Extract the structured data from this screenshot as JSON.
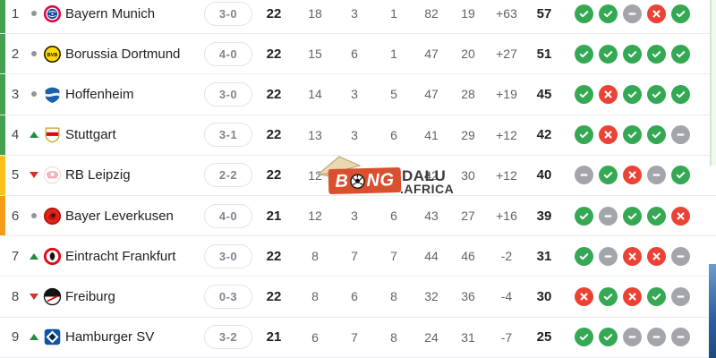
{
  "watermark": {
    "brand_left": "B",
    "brand_right": "NG",
    "brand_mid_icon": "soccer-ball-icon",
    "dalu": "DAŁU",
    "africa": ".AFRICA",
    "box_color": "#d8502e"
  },
  "colors": {
    "zone_green": "#42a04e",
    "zone_yellow": "#fcc21b",
    "zone_orange": "#f59b1c",
    "form_win": "#34a853",
    "form_loss": "#ea4335",
    "form_draw": "#a2a6ab",
    "move_up": "#1e8e3e",
    "move_down": "#d93025"
  },
  "table": {
    "rows": [
      {
        "pos": "1",
        "movement": "same",
        "logo": "bayern-munich-crest",
        "team": "Bayern Munich",
        "last_score": "3-0",
        "mp": "22",
        "w": "18",
        "d": "3",
        "l": "1",
        "gf": "82",
        "ga": "19",
        "gd": "+63",
        "pts": "57",
        "zone": "green",
        "form": [
          "win",
          "win",
          "draw",
          "loss",
          "win"
        ]
      },
      {
        "pos": "2",
        "movement": "same",
        "logo": "borussia-dortmund-crest",
        "team": "Borussia Dortmund",
        "last_score": "4-0",
        "mp": "22",
        "w": "15",
        "d": "6",
        "l": "1",
        "gf": "47",
        "ga": "20",
        "gd": "+27",
        "pts": "51",
        "zone": "green",
        "form": [
          "win",
          "win",
          "win",
          "win",
          "win"
        ]
      },
      {
        "pos": "3",
        "movement": "same",
        "logo": "hoffenheim-crest",
        "team": "Hoffenheim",
        "last_score": "3-0",
        "mp": "22",
        "w": "14",
        "d": "3",
        "l": "5",
        "gf": "47",
        "ga": "28",
        "gd": "+19",
        "pts": "45",
        "zone": "green",
        "form": [
          "win",
          "loss",
          "win",
          "win",
          "win"
        ]
      },
      {
        "pos": "4",
        "movement": "up",
        "logo": "stuttgart-crest",
        "team": "Stuttgart",
        "last_score": "3-1",
        "mp": "22",
        "w": "13",
        "d": "3",
        "l": "6",
        "gf": "41",
        "ga": "29",
        "gd": "+12",
        "pts": "42",
        "zone": "green",
        "form": [
          "win",
          "loss",
          "win",
          "win",
          "draw"
        ]
      },
      {
        "pos": "5",
        "movement": "down",
        "logo": "rb-leipzig-crest",
        "team": "RB Leipzig",
        "last_score": "2-2",
        "mp": "22",
        "w": "12",
        "d": "4",
        "l": "6",
        "gf": "42",
        "ga": "30",
        "gd": "+12",
        "pts": "40",
        "zone": "yellow",
        "form": [
          "draw",
          "win",
          "loss",
          "draw",
          "win"
        ]
      },
      {
        "pos": "6",
        "movement": "same",
        "logo": "bayer-leverkusen-crest",
        "team": "Bayer Leverkusen",
        "last_score": "4-0",
        "mp": "21",
        "w": "12",
        "d": "3",
        "l": "6",
        "gf": "43",
        "ga": "27",
        "gd": "+16",
        "pts": "39",
        "zone": "orange",
        "form": [
          "win",
          "draw",
          "win",
          "win",
          "loss"
        ]
      },
      {
        "pos": "7",
        "movement": "up",
        "logo": "eintracht-frankfurt-crest",
        "team": "Eintracht Frankfurt",
        "last_score": "3-0",
        "mp": "22",
        "w": "8",
        "d": "7",
        "l": "7",
        "gf": "44",
        "ga": "46",
        "gd": "-2",
        "pts": "31",
        "zone": "none",
        "form": [
          "win",
          "draw",
          "loss",
          "loss",
          "draw"
        ]
      },
      {
        "pos": "8",
        "movement": "down",
        "logo": "freiburg-crest",
        "team": "Freiburg",
        "last_score": "0-3",
        "mp": "22",
        "w": "8",
        "d": "6",
        "l": "8",
        "gf": "32",
        "ga": "36",
        "gd": "-4",
        "pts": "30",
        "zone": "none",
        "form": [
          "loss",
          "win",
          "loss",
          "win",
          "draw"
        ]
      },
      {
        "pos": "9",
        "movement": "up",
        "logo": "hamburger-sv-crest",
        "team": "Hamburger SV",
        "last_score": "3-2",
        "mp": "21",
        "w": "6",
        "d": "7",
        "l": "8",
        "gf": "24",
        "ga": "31",
        "gd": "-7",
        "pts": "25",
        "zone": "none",
        "form": [
          "win",
          "win",
          "draw",
          "draw",
          "draw"
        ]
      }
    ]
  }
}
